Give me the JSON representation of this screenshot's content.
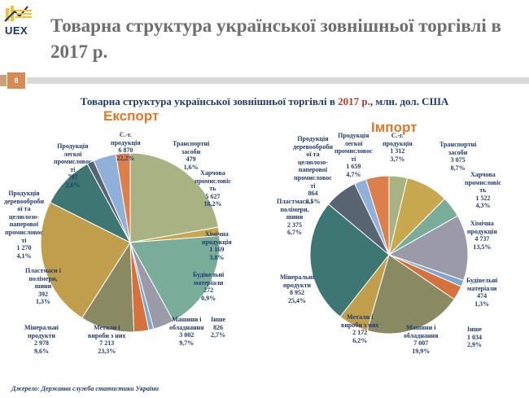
{
  "header": {
    "logo_text": "UEX",
    "title": "Товарна структура української зовнішньої торгівлі в 2017 р.",
    "slide_number": "8"
  },
  "subtitle": {
    "prefix": "Товарна структура української зовнішньої торгівлі в",
    "year": "2017 р.",
    "suffix": ", млн. дол. США"
  },
  "source": "Джерело: Державна служба статистики України",
  "colors": {
    "agri": "#a8b283",
    "transport": "#c7a84e",
    "food": "#79ad9a",
    "chemical": "#9a9aa8",
    "construction": "#7ea6d0",
    "other": "#d5713c",
    "machinery": "#8a8a62",
    "metals": "#c19e4c",
    "minerals": "#3d7673",
    "plastics": "#596472",
    "wood": "#8fb0d8",
    "light": "#dd7f4a"
  },
  "chart_data": [
    {
      "type": "pie",
      "title": "Експорт",
      "categories": [
        "С.-г. продукція",
        "Транспортні засоби",
        "Харчова промисловість",
        "Хімічна продукція",
        "Будівельні матеріали",
        "Інше",
        "Машини і обладнання",
        "Метали і вироби з них",
        "Мінеральні продукти",
        "Пластмаси і полімери, шини",
        "Продукція деревообробної та целюлозно-паперової промисловості",
        "Продукція легкої промисловості"
      ],
      "values": [
        6870,
        479,
        5627,
        1169,
        272,
        826,
        3002,
        7213,
        2978,
        392,
        1270,
        797
      ],
      "percents": [
        22.2,
        1.6,
        18.2,
        3.8,
        0.9,
        2.7,
        9.7,
        23.3,
        9.6,
        1.3,
        4.1,
        2.6
      ],
      "labels": [
        "С.-г.\nпродукція\n6 870\n22,2%",
        "Транспортні\nзасоби\n479\n1,6%",
        "Харчова\nпромисловіс\nть\n5 627\n18,2%",
        "Хімічна\nпродукція\n1 169\n3,8%",
        "Будівельні\nматеріали\n272\n0,9%",
        "Інше\n826\n2,7%",
        "Машини і\nобладнання\n3 002\n9,7%",
        "Метали і\nвироби з них\n7 213\n23,3%",
        "Мінеральні\nпродукти\n2 978\n9,6%",
        "Пластмаси і\nполімери,\nшини\n392\n1,3%",
        "Продукція\nдеревообробн\nої та\nцелюлозо-\nпаперової\nпромисловос\nті\n1 270\n4,1%",
        "Продукція\nлегкої\nпромисловос\nті\n797\n2,6%"
      ]
    },
    {
      "type": "pie",
      "title": "Імпорт",
      "categories": [
        "С.-г. продукція",
        "Транспортні засоби",
        "Харчова промисловість",
        "Хімічна продукція",
        "Будівельні матеріали",
        "Інше",
        "Машини і обладнання",
        "Метали і вироби з них",
        "Мінеральні продукти",
        "Пластмаси і полімери, шини",
        "Продукція деревообробної та целюлозно-паперової промисловості",
        "Продукція легкої промисловості"
      ],
      "values": [
        1312,
        3075,
        1522,
        4737,
        474,
        1034,
        7007,
        2172,
        8952,
        2375,
        864,
        1659
      ],
      "percents": [
        3.7,
        8.7,
        4.3,
        13.5,
        1.3,
        2.9,
        19.9,
        6.2,
        25.4,
        6.7,
        2.5,
        4.7
      ],
      "labels": [
        "С.-г.\nпродукція\n1 312\n3,7%",
        "Транспортні\nзасоби\n3 075\n8,7%",
        "Харчова\nпромисловіс\nть\n1 522\n4,3%",
        "Хімічна\nпродукція\n4 737\n13,5%",
        "Будівельні\nматеріали\n474\n1,3%",
        "Інше\n1 034\n2,9%",
        "Машини і\nобладнання\n7 007\n19,9%",
        "Метали і\nвироби з них\n2 172\n6,2%",
        "Мінеральні\nпродукти\n8 952\n25,4%",
        "Пластмаси і\nполімери,\nшини\n2 375\n6,7%",
        "Продукція\nдеревообробн\nої та\nцелюлозо-\nпаперової\nпромисловос\nті\n864\n2,5%",
        "Продукція\nлегкої\nпромисловос\nті\n1 659\n4,7%"
      ]
    }
  ]
}
